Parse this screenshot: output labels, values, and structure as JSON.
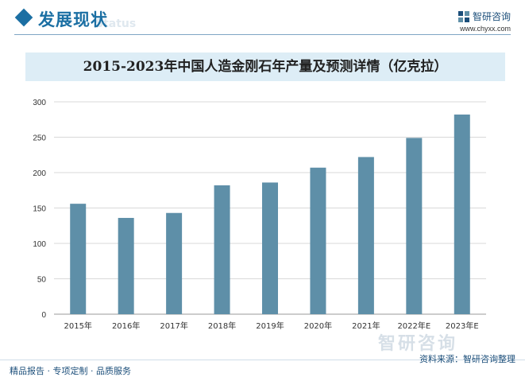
{
  "header": {
    "section_title": "发展现状",
    "section_subtitle": "Status",
    "brand_name": "智研咨询",
    "brand_url": "www.chyxx.com"
  },
  "watermark": {
    "text": "智研咨询"
  },
  "footer": {
    "left": "精品报告 · 专项定制 · 品质服务",
    "source": "资料来源：智研咨询整理"
  },
  "colors": {
    "bar": "#5e8fa8",
    "accent": "#1b6fa3",
    "title_bg": "#ddedf6"
  },
  "chart_data": {
    "type": "bar",
    "title": "2015-2023年中国人造金刚石年产量及预测详情（亿克拉）",
    "xlabel": "",
    "ylabel": "",
    "categories": [
      "2015年",
      "2016年",
      "2017年",
      "2018年",
      "2019年",
      "2020年",
      "2021年",
      "2022年E",
      "2023年E"
    ],
    "values": [
      156,
      136,
      143,
      182,
      186,
      207,
      222,
      249,
      282
    ],
    "ylim": [
      0,
      300
    ],
    "yticks": [
      0,
      50,
      100,
      150,
      200,
      250,
      300
    ],
    "grid": true,
    "legend": "none"
  }
}
